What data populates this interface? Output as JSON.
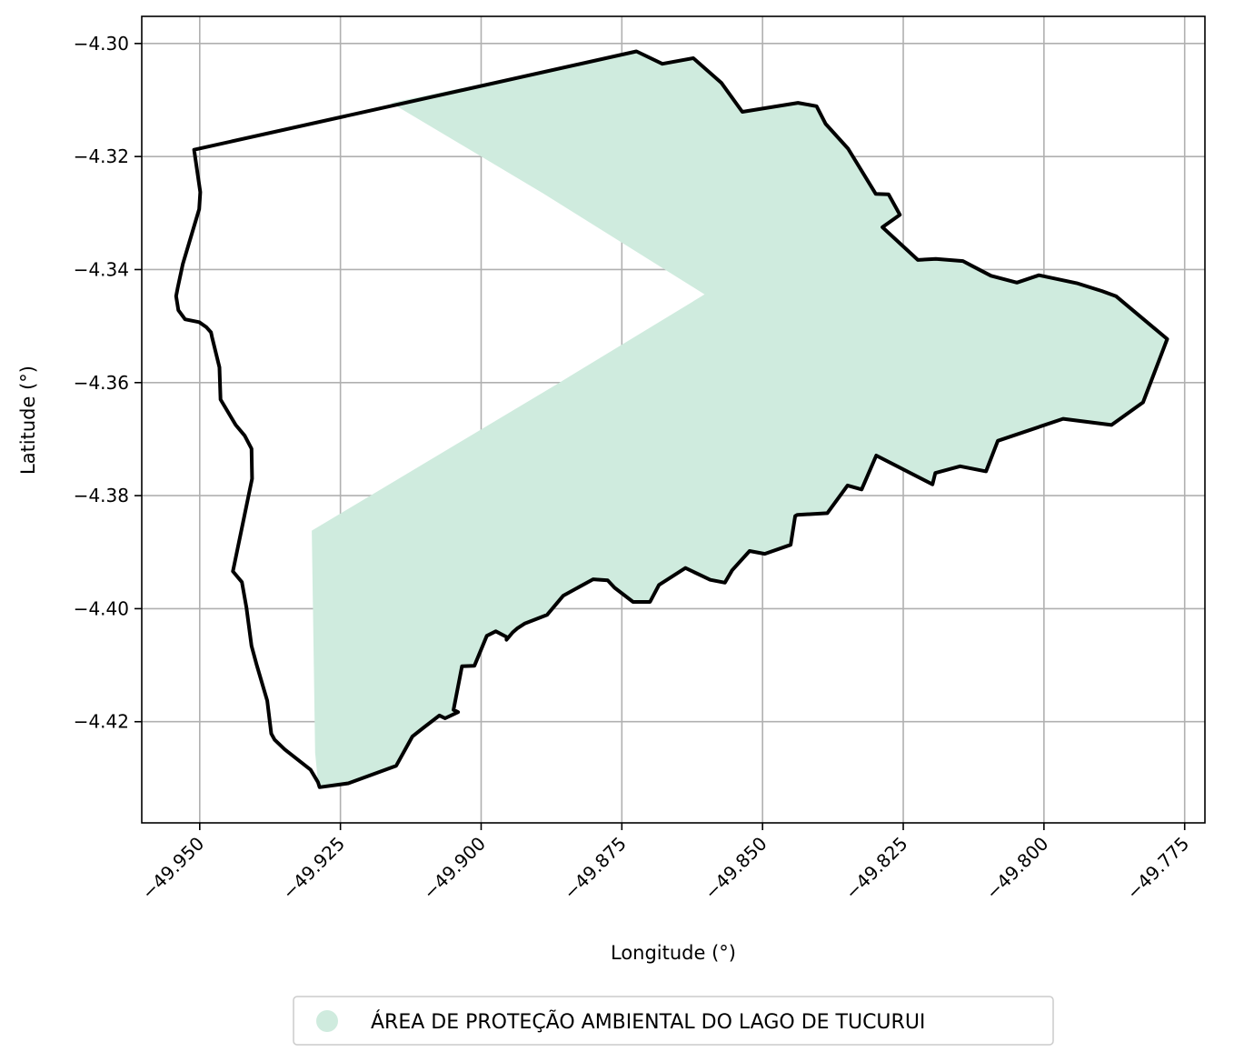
{
  "chart_data": {
    "type": "map",
    "xlabel": "Longitude (°)",
    "ylabel": "Latitude (°)",
    "xlim": [
      -49.9603,
      -49.7714
    ],
    "ylim": [
      -4.4379,
      -4.2952
    ],
    "grid": true,
    "x_ticks": [
      -49.95,
      -49.925,
      -49.9,
      -49.875,
      -49.85,
      -49.825,
      -49.8,
      -49.775
    ],
    "x_tick_labels": [
      "−49.950",
      "−49.925",
      "−49.900",
      "−49.875",
      "−49.850",
      "−49.825",
      "−49.800",
      "−49.775"
    ],
    "y_ticks": [
      -4.3,
      -4.32,
      -4.34,
      -4.36,
      -4.38,
      -4.4,
      -4.42
    ],
    "y_tick_labels": [
      "−4.30",
      "−4.32",
      "−4.34",
      "−4.36",
      "−4.38",
      "−4.40",
      "−4.42"
    ],
    "legend": {
      "placement": "bottom-center",
      "entries": [
        {
          "label": "ÁREA DE PROTEÇÃO AMBIENTAL DO LAGO DE TUCURUI",
          "color": "#cfebde"
        }
      ]
    },
    "fill_color": "#cfebde",
    "boundary_color": "#000000",
    "boundary_polygon": [
      [
        -49.951,
        -4.3188
      ],
      [
        -49.8724,
        -4.3014
      ],
      [
        -49.8678,
        -4.3036
      ],
      [
        -49.8623,
        -4.3026
      ],
      [
        -49.8573,
        -4.307
      ],
      [
        -49.8536,
        -4.3121
      ],
      [
        -49.8437,
        -4.3105
      ],
      [
        -49.8404,
        -4.3111
      ],
      [
        -49.8388,
        -4.3142
      ],
      [
        -49.8348,
        -4.3186
      ],
      [
        -49.8299,
        -4.3266
      ],
      [
        -49.8276,
        -4.3267
      ],
      [
        -49.8256,
        -4.3303
      ],
      [
        -49.8287,
        -4.3325
      ],
      [
        -49.8224,
        -4.3383
      ],
      [
        -49.8192,
        -4.3381
      ],
      [
        -49.8144,
        -4.3385
      ],
      [
        -49.8127,
        -4.3394
      ],
      [
        -49.8094,
        -4.3411
      ],
      [
        -49.8048,
        -4.3423
      ],
      [
        -49.8009,
        -4.341
      ],
      [
        -49.7942,
        -4.3424
      ],
      [
        -49.7897,
        -4.3438
      ],
      [
        -49.7872,
        -4.3447
      ],
      [
        -49.7781,
        -4.3523
      ],
      [
        -49.7824,
        -4.3635
      ],
      [
        -49.788,
        -4.3675
      ],
      [
        -49.7966,
        -4.3664
      ],
      [
        -49.8082,
        -4.3703
      ],
      [
        -49.8103,
        -4.3757
      ],
      [
        -49.8149,
        -4.3748
      ],
      [
        -49.8193,
        -4.376
      ],
      [
        -49.8198,
        -4.378
      ],
      [
        -49.8298,
        -4.3729
      ],
      [
        -49.8324,
        -4.3789
      ],
      [
        -49.8349,
        -4.3782
      ],
      [
        -49.8385,
        -4.3831
      ],
      [
        -49.8438,
        -4.3834
      ],
      [
        -49.8442,
        -4.3836
      ],
      [
        -49.845,
        -4.3887
      ],
      [
        -49.8496,
        -4.3903
      ],
      [
        -49.8523,
        -4.3898
      ],
      [
        -49.8554,
        -4.3932
      ],
      [
        -49.8567,
        -4.3954
      ],
      [
        -49.8593,
        -4.3949
      ],
      [
        -49.8637,
        -4.3928
      ],
      [
        -49.8684,
        -4.3958
      ],
      [
        -49.87,
        -4.3988
      ],
      [
        -49.873,
        -4.3988
      ],
      [
        -49.8763,
        -4.3963
      ],
      [
        -49.8775,
        -4.395
      ],
      [
        -49.8801,
        -4.3948
      ],
      [
        -49.8854,
        -4.3977
      ],
      [
        -49.8883,
        -4.4011
      ],
      [
        -49.8922,
        -4.4026
      ],
      [
        -49.8936,
        -4.4035
      ],
      [
        -49.8944,
        -4.4042
      ],
      [
        -49.8955,
        -4.4055
      ],
      [
        -49.8955,
        -4.405
      ],
      [
        -49.8974,
        -4.404
      ],
      [
        -49.899,
        -4.4048
      ],
      [
        -49.9012,
        -4.4101
      ],
      [
        -49.9034,
        -4.4102
      ],
      [
        -49.9049,
        -4.4179
      ],
      [
        -49.9041,
        -4.4183
      ],
      [
        -49.9064,
        -4.4194
      ],
      [
        -49.9074,
        -4.4189
      ],
      [
        -49.9103,
        -4.4211
      ],
      [
        -49.9122,
        -4.4226
      ],
      [
        -49.9151,
        -4.4278
      ],
      [
        -49.9236,
        -4.4309
      ],
      [
        -49.9287,
        -4.4316
      ],
      [
        -49.929,
        -4.4307
      ],
      [
        -49.9303,
        -4.4285
      ],
      [
        -49.9349,
        -4.4249
      ],
      [
        -49.9367,
        -4.4232
      ],
      [
        -49.9373,
        -4.4221
      ],
      [
        -49.938,
        -4.4163
      ],
      [
        -49.9399,
        -4.4099
      ],
      [
        -49.9408,
        -4.4066
      ],
      [
        -49.9417,
        -4.3998
      ],
      [
        -49.9425,
        -4.3953
      ],
      [
        -49.9441,
        -4.3934
      ],
      [
        -49.9423,
        -4.3847
      ],
      [
        -49.9407,
        -4.377
      ],
      [
        -49.9408,
        -4.3717
      ],
      [
        -49.942,
        -4.3694
      ],
      [
        -49.9436,
        -4.3675
      ],
      [
        -49.9463,
        -4.363
      ],
      [
        -49.9465,
        -4.3573
      ],
      [
        -49.9478,
        -4.352
      ],
      [
        -49.948,
        -4.3511
      ],
      [
        -49.9488,
        -4.3502
      ],
      [
        -49.9501,
        -4.3493
      ],
      [
        -49.9526,
        -4.3488
      ],
      [
        -49.9538,
        -4.3472
      ],
      [
        -49.9542,
        -4.3447
      ],
      [
        -49.9539,
        -4.3432
      ],
      [
        -49.953,
        -4.339
      ],
      [
        -49.9501,
        -4.3293
      ],
      [
        -49.9499,
        -4.3263
      ],
      [
        -49.951,
        -4.3188
      ]
    ],
    "fill_polygon": [
      [
        -49.916,
        -4.3105
      ],
      [
        -49.8724,
        -4.3014
      ],
      [
        -49.8678,
        -4.3036
      ],
      [
        -49.8623,
        -4.3026
      ],
      [
        -49.8573,
        -4.307
      ],
      [
        -49.8536,
        -4.3121
      ],
      [
        -49.8437,
        -4.3105
      ],
      [
        -49.8404,
        -4.3111
      ],
      [
        -49.8388,
        -4.3142
      ],
      [
        -49.8348,
        -4.3186
      ],
      [
        -49.8299,
        -4.3266
      ],
      [
        -49.8276,
        -4.3267
      ],
      [
        -49.8256,
        -4.3303
      ],
      [
        -49.8287,
        -4.3325
      ],
      [
        -49.8224,
        -4.3383
      ],
      [
        -49.8192,
        -4.3381
      ],
      [
        -49.8144,
        -4.3385
      ],
      [
        -49.8127,
        -4.3394
      ],
      [
        -49.8094,
        -4.3411
      ],
      [
        -49.8048,
        -4.3423
      ],
      [
        -49.8009,
        -4.341
      ],
      [
        -49.7942,
        -4.3424
      ],
      [
        -49.7897,
        -4.3438
      ],
      [
        -49.7872,
        -4.3447
      ],
      [
        -49.7781,
        -4.3523
      ],
      [
        -49.7824,
        -4.3635
      ],
      [
        -49.788,
        -4.3675
      ],
      [
        -49.7966,
        -4.3664
      ],
      [
        -49.8082,
        -4.3703
      ],
      [
        -49.8103,
        -4.3757
      ],
      [
        -49.8149,
        -4.3748
      ],
      [
        -49.8193,
        -4.376
      ],
      [
        -49.8198,
        -4.378
      ],
      [
        -49.8298,
        -4.3729
      ],
      [
        -49.8324,
        -4.3789
      ],
      [
        -49.8349,
        -4.3782
      ],
      [
        -49.8385,
        -4.3831
      ],
      [
        -49.8438,
        -4.3834
      ],
      [
        -49.8442,
        -4.3836
      ],
      [
        -49.845,
        -4.3887
      ],
      [
        -49.8496,
        -4.3903
      ],
      [
        -49.8523,
        -4.3898
      ],
      [
        -49.8554,
        -4.3932
      ],
      [
        -49.8567,
        -4.3954
      ],
      [
        -49.8593,
        -4.3949
      ],
      [
        -49.8637,
        -4.3928
      ],
      [
        -49.8684,
        -4.3958
      ],
      [
        -49.87,
        -4.3988
      ],
      [
        -49.873,
        -4.3988
      ],
      [
        -49.8763,
        -4.3963
      ],
      [
        -49.8775,
        -4.395
      ],
      [
        -49.8801,
        -4.3948
      ],
      [
        -49.8854,
        -4.3977
      ],
      [
        -49.8883,
        -4.4011
      ],
      [
        -49.8922,
        -4.4026
      ],
      [
        -49.8936,
        -4.4035
      ],
      [
        -49.8944,
        -4.4042
      ],
      [
        -49.8955,
        -4.4055
      ],
      [
        -49.8955,
        -4.405
      ],
      [
        -49.8974,
        -4.404
      ],
      [
        -49.899,
        -4.4048
      ],
      [
        -49.9012,
        -4.4101
      ],
      [
        -49.9034,
        -4.4102
      ],
      [
        -49.9049,
        -4.4179
      ],
      [
        -49.9041,
        -4.4183
      ],
      [
        -49.9064,
        -4.4194
      ],
      [
        -49.9074,
        -4.4189
      ],
      [
        -49.9103,
        -4.4211
      ],
      [
        -49.9122,
        -4.4226
      ],
      [
        -49.9151,
        -4.4278
      ],
      [
        -49.9236,
        -4.4309
      ],
      [
        -49.9287,
        -4.4316
      ],
      [
        -49.929,
        -4.4307
      ],
      [
        -49.9295,
        -4.4255
      ],
      [
        -49.9301,
        -4.3862
      ],
      [
        -49.8866,
        -4.3603
      ],
      [
        -49.8603,
        -4.3444
      ],
      [
        -49.889,
        -4.3265
      ],
      [
        -49.916,
        -4.3105
      ]
    ]
  }
}
